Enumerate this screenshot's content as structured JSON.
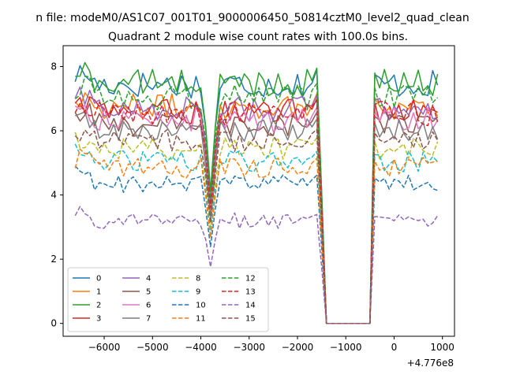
{
  "chart_data": {
    "type": "line",
    "suptitle": "n file: modeM0/AS1C07_001T01_9000006450_50814cztM0_level2_quad_clean",
    "title": "Quadrant 2 module wise count rates with 100.0s bins.",
    "xlabel": "",
    "ylabel": "",
    "x_offset_label": "+4.776e8",
    "xlim": [
      -6850,
      1250
    ],
    "ylim": [
      -0.4,
      8.65
    ],
    "xticks": [
      -6000,
      -5000,
      -4000,
      -3000,
      -2000,
      -1000,
      0,
      1000
    ],
    "xtick_labels": [
      "−6000",
      "−5000",
      "−4000",
      "−3000",
      "−2000",
      "−1000",
      "0",
      "1000"
    ],
    "yticks": [
      0,
      2,
      4,
      6,
      8
    ],
    "ytick_labels": [
      "0",
      "2",
      "4",
      "6",
      "8"
    ],
    "x_start": -6600,
    "x_step": 100,
    "x_end": 900,
    "gap_start": -1400,
    "gap_end": -500,
    "dip_center": -3800,
    "legend_position": "lower-left",
    "legend_columns": 4,
    "series": [
      {
        "name": "0",
        "color": "#1f77b4",
        "style": "solid",
        "base": 7.45
      },
      {
        "name": "1",
        "color": "#ff7f0e",
        "style": "solid",
        "base": 6.75
      },
      {
        "name": "2",
        "color": "#2ca02c",
        "style": "solid",
        "base": 7.5
      },
      {
        "name": "3",
        "color": "#d62728",
        "style": "solid",
        "base": 6.6
      },
      {
        "name": "4",
        "color": "#9467bd",
        "style": "solid",
        "base": 6.7
      },
      {
        "name": "5",
        "color": "#8c564b",
        "style": "solid",
        "base": 6.2
      },
      {
        "name": "6",
        "color": "#e377c2",
        "style": "solid",
        "base": 6.35
      },
      {
        "name": "7",
        "color": "#7f7f7f",
        "style": "solid",
        "base": 6.0
      },
      {
        "name": "8",
        "color": "#bcbd22",
        "style": "dashed",
        "base": 5.45
      },
      {
        "name": "9",
        "color": "#17becf",
        "style": "dashed",
        "base": 5.05
      },
      {
        "name": "10",
        "color": "#1f77b4",
        "style": "dashed",
        "base": 4.35
      },
      {
        "name": "11",
        "color": "#ff7f0e",
        "style": "dashed",
        "base": 4.85
      },
      {
        "name": "12",
        "color": "#2ca02c",
        "style": "dashed",
        "base": 7.05
      },
      {
        "name": "13",
        "color": "#d62728",
        "style": "dashed",
        "base": 6.55
      },
      {
        "name": "14",
        "color": "#9467bd",
        "style": "dashed",
        "base": 3.2
      },
      {
        "name": "15",
        "color": "#8c564b",
        "style": "dashed",
        "base": 5.7
      }
    ]
  }
}
